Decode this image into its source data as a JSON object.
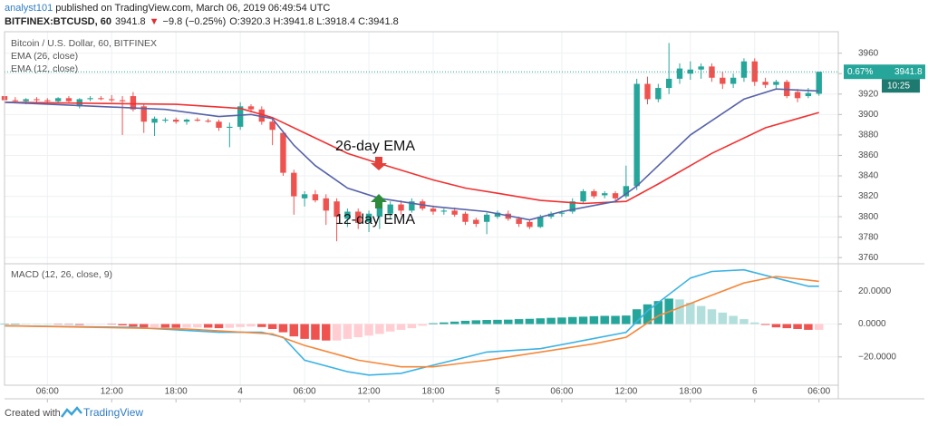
{
  "header": {
    "author": "analyst101",
    "published": " published on TradingView.com, March 06, 2019 06:49:54 UTC",
    "symbol": "BITFINEX:BTCUSD, 60",
    "last": "3941.8",
    "change": "−9.8 (−0.25%)",
    "ohlc": "O:3920.3 H:3941.8 L:3918.4 C:3941.8"
  },
  "footer": {
    "text": "Created with",
    "brand": "TradingView"
  },
  "chart_data": [
    {
      "type": "candlestick",
      "title": "Bitcoin / U.S. Dollar, 60, BITFINEX",
      "up_color": "#26a69a",
      "down_color": "#ef5350",
      "ylim": [
        3754,
        3981
      ],
      "yticks": [
        3760,
        3780,
        3800,
        3820,
        3840,
        3860,
        3880,
        3900,
        3920,
        3940,
        3960
      ],
      "xlim": [
        0,
        77.8
      ],
      "xticks": [
        {
          "value": 4,
          "label": "06:00"
        },
        {
          "value": 10,
          "label": "12:00"
        },
        {
          "value": 16,
          "label": "18:00"
        },
        {
          "value": 22,
          "label": "4"
        },
        {
          "value": 28,
          "label": "06:00"
        },
        {
          "value": 34,
          "label": "12:00"
        },
        {
          "value": 40,
          "label": "18:00"
        },
        {
          "value": 46,
          "label": "5"
        },
        {
          "value": 52,
          "label": "06:00"
        },
        {
          "value": 58,
          "label": "12:00"
        },
        {
          "value": 64,
          "label": "18:00"
        },
        {
          "value": 70,
          "label": "6"
        },
        {
          "value": 76,
          "label": "06:00"
        }
      ],
      "grid": true,
      "ohlc": [
        [
          3918,
          3920,
          3912,
          3914
        ],
        [
          3914,
          3917,
          3911,
          3913
        ],
        [
          3913,
          3916,
          3910,
          3915
        ],
        [
          3915,
          3917,
          3912,
          3914
        ],
        [
          3914,
          3916,
          3910,
          3913
        ],
        [
          3913,
          3917,
          3911,
          3916
        ],
        [
          3916,
          3918,
          3912,
          3913
        ],
        [
          3908,
          3916,
          3906,
          3915
        ],
        [
          3915,
          3918,
          3913,
          3916
        ],
        [
          3916,
          3918,
          3914,
          3915
        ],
        [
          3915,
          3919,
          3912,
          3914
        ],
        [
          3914,
          3918,
          3880,
          3913
        ],
        [
          3918,
          3922,
          3903,
          3905
        ],
        [
          3908,
          3910,
          3882,
          3893
        ],
        [
          3892,
          3898,
          3879,
          3896
        ],
        [
          3894,
          3897,
          3892,
          3895
        ],
        [
          3895,
          3897,
          3891,
          3893
        ],
        [
          3893,
          3896,
          3890,
          3895
        ],
        [
          3895,
          3897,
          3893,
          3894
        ],
        [
          3894,
          3896,
          3892,
          3893
        ],
        [
          3893,
          3895,
          3884,
          3887
        ],
        [
          3887,
          3892,
          3868,
          3888
        ],
        [
          3888,
          3912,
          3885,
          3908
        ],
        [
          3908,
          3910,
          3902,
          3905
        ],
        [
          3905,
          3908,
          3890,
          3893
        ],
        [
          3893,
          3896,
          3870,
          3885
        ],
        [
          3882,
          3884,
          3840,
          3843
        ],
        [
          3843,
          3846,
          3802,
          3820
        ],
        [
          3818,
          3825,
          3810,
          3822
        ],
        [
          3822,
          3826,
          3814,
          3816
        ],
        [
          3818,
          3822,
          3792,
          3806
        ],
        [
          3815,
          3818,
          3776,
          3800
        ],
        [
          3798,
          3808,
          3790,
          3805
        ],
        [
          3805,
          3808,
          3788,
          3794
        ],
        [
          3795,
          3806,
          3785,
          3803
        ],
        [
          3800,
          3817,
          3788,
          3814
        ],
        [
          3803,
          3815,
          3798,
          3812
        ],
        [
          3812,
          3816,
          3802,
          3806
        ],
        [
          3806,
          3818,
          3804,
          3815
        ],
        [
          3815,
          3817,
          3806,
          3808
        ],
        [
          3808,
          3811,
          3802,
          3805
        ],
        [
          3805,
          3808,
          3802,
          3806
        ],
        [
          3806,
          3809,
          3800,
          3802
        ],
        [
          3803,
          3805,
          3792,
          3795
        ],
        [
          3797,
          3799,
          3790,
          3793
        ],
        [
          3795,
          3804,
          3783,
          3802
        ],
        [
          3800,
          3806,
          3798,
          3804
        ],
        [
          3803,
          3806,
          3796,
          3798
        ],
        [
          3798,
          3800,
          3790,
          3793
        ],
        [
          3795,
          3797,
          3788,
          3790
        ],
        [
          3790,
          3802,
          3789,
          3800
        ],
        [
          3800,
          3805,
          3798,
          3803
        ],
        [
          3803,
          3806,
          3800,
          3804
        ],
        [
          3805,
          3818,
          3803,
          3815
        ],
        [
          3815,
          3827,
          3813,
          3825
        ],
        [
          3825,
          3827,
          3818,
          3820
        ],
        [
          3821,
          3825,
          3818,
          3823
        ],
        [
          3823,
          3825,
          3816,
          3818
        ],
        [
          3820,
          3850,
          3818,
          3830
        ],
        [
          3830,
          3935,
          3826,
          3930
        ],
        [
          3930,
          3937,
          3910,
          3915
        ],
        [
          3915,
          3930,
          3912,
          3926
        ],
        [
          3926,
          3970,
          3920,
          3935
        ],
        [
          3935,
          3950,
          3930,
          3945
        ],
        [
          3940,
          3952,
          3934,
          3944
        ],
        [
          3944,
          3950,
          3935,
          3947
        ],
        [
          3947,
          3950,
          3932,
          3936
        ],
        [
          3936,
          3942,
          3925,
          3930
        ],
        [
          3930,
          3940,
          3926,
          3936
        ],
        [
          3936,
          3955,
          3932,
          3952
        ],
        [
          3952,
          3955,
          3928,
          3932
        ],
        [
          3932,
          3936,
          3926,
          3929
        ],
        [
          3929,
          3934,
          3925,
          3932
        ],
        [
          3932,
          3934,
          3916,
          3918
        ],
        [
          3922,
          3925,
          3912,
          3916
        ],
        [
          3918,
          3926,
          3916,
          3921
        ],
        [
          3920.3,
          3941.8,
          3918.4,
          3941.8
        ]
      ],
      "series": [
        {
          "name": "EMA (26, close)",
          "color": "#f23030",
          "x": [
            0,
            16,
            22,
            25,
            28,
            32,
            35,
            40,
            43,
            46,
            50,
            54,
            58,
            61,
            66,
            71,
            76
          ],
          "values": [
            3912,
            3910,
            3906,
            3897,
            3882,
            3862,
            3852,
            3836,
            3828,
            3823,
            3816,
            3813,
            3815,
            3832,
            3862,
            3887,
            3902
          ]
        },
        {
          "name": "EMA (12, close)",
          "color": "#5763a8",
          "x": [
            0,
            15,
            20,
            23,
            25,
            27,
            29,
            32,
            35,
            40,
            45,
            49,
            52,
            57,
            59,
            64,
            69,
            72,
            76
          ],
          "values": [
            3912,
            3905,
            3898,
            3900,
            3896,
            3870,
            3850,
            3828,
            3818,
            3810,
            3805,
            3797,
            3805,
            3815,
            3830,
            3880,
            3915,
            3925,
            3923
          ]
        }
      ],
      "last_price": {
        "value": 3941.8,
        "change": "0.67%",
        "countdown": "10:25",
        "color": "#26a69a"
      },
      "annotations": [
        "26-day EMA",
        "12-day EMA"
      ]
    },
    {
      "type": "macd",
      "title": "MACD (12, 26, close, 9)",
      "ylim": [
        -37.2,
        36.7
      ],
      "yticks": [
        {
          "value": 20,
          "label": "20.0000"
        },
        {
          "value": 0,
          "label": "0.0000"
        },
        {
          "value": -20,
          "label": "−20.0000"
        }
      ],
      "histogram": {
        "colors": {
          "rising_up": "#26a69a",
          "falling_up": "#b2dfdb",
          "falling_down": "#ef5350",
          "rising_down": "#ffcdd2"
        },
        "values": [
          0.2,
          0.3,
          0.2,
          0.1,
          0,
          -0.2,
          -0.3,
          -0.5,
          -0.3,
          -0.2,
          -0.3,
          -0.8,
          -1.5,
          -2,
          -2,
          -2.2,
          -2.3,
          -2.2,
          -2,
          -2.2,
          -2.5,
          -2.3,
          -1.8,
          -1.5,
          -1.8,
          -3,
          -5,
          -7.5,
          -9,
          -9.5,
          -10,
          -10,
          -9,
          -8,
          -7,
          -6,
          -4.5,
          -3.5,
          -2.5,
          -1,
          0.5,
          1,
          1.5,
          2,
          2.3,
          2.5,
          2.6,
          2.7,
          3,
          3.2,
          3.5,
          3.8,
          4,
          4.3,
          4.5,
          4.8,
          5,
          5,
          5.2,
          9,
          12,
          14,
          15.5,
          15,
          13,
          11,
          9,
          7,
          5,
          3,
          1,
          -0.5,
          -2,
          -2.5,
          -3,
          -3.5,
          -3.5
        ]
      },
      "series": [
        {
          "color": "#3bb3e4",
          "x": [
            0,
            12,
            20,
            24,
            26,
            28,
            32,
            34,
            37,
            40,
            45,
            50,
            54,
            58,
            60,
            64,
            66,
            69,
            72,
            75,
            76
          ],
          "values": [
            -1,
            -2,
            -5,
            -5,
            -8,
            -22,
            -29,
            -31,
            -30,
            -25,
            -17,
            -15,
            -10,
            -5,
            8,
            28,
            32,
            33,
            28,
            23,
            23
          ]
        },
        {
          "color": "#f5883b",
          "x": [
            0,
            17,
            25,
            28,
            33,
            37,
            40,
            45,
            50,
            55,
            58,
            61,
            65,
            69,
            72,
            76
          ],
          "values": [
            -1,
            -3,
            -6,
            -13,
            -22,
            -26,
            -26,
            -22,
            -17,
            -12,
            -8,
            5,
            15,
            25,
            29,
            26
          ]
        }
      ]
    }
  ]
}
